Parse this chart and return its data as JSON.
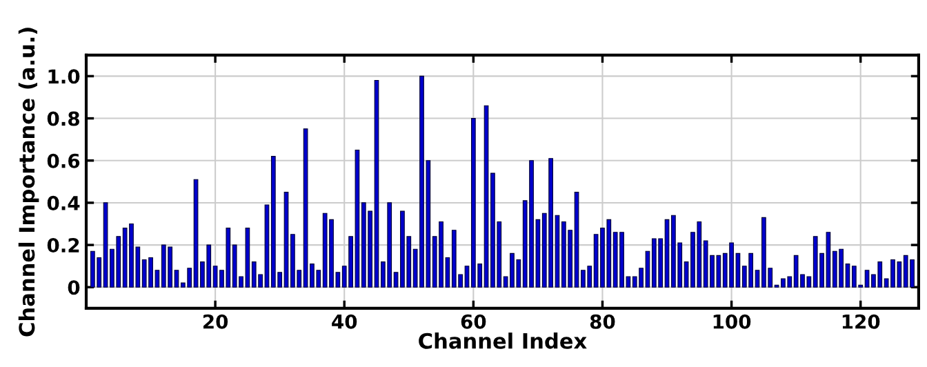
{
  "chart_data": {
    "type": "bar",
    "xlabel": "Channel Index",
    "ylabel": "Channel Importance (a.u.)",
    "x": [
      1,
      2,
      3,
      4,
      5,
      6,
      7,
      8,
      9,
      10,
      11,
      12,
      13,
      14,
      15,
      16,
      17,
      18,
      19,
      20,
      21,
      22,
      23,
      24,
      25,
      26,
      27,
      28,
      29,
      30,
      31,
      32,
      33,
      34,
      35,
      36,
      37,
      38,
      39,
      40,
      41,
      42,
      43,
      44,
      45,
      46,
      47,
      48,
      49,
      50,
      51,
      52,
      53,
      54,
      55,
      56,
      57,
      58,
      59,
      60,
      61,
      62,
      63,
      64,
      65,
      66,
      67,
      68,
      69,
      70,
      71,
      72,
      73,
      74,
      75,
      76,
      77,
      78,
      79,
      80,
      81,
      82,
      83,
      84,
      85,
      86,
      87,
      88,
      89,
      90,
      91,
      92,
      93,
      94,
      95,
      96,
      97,
      98,
      99,
      100,
      101,
      102,
      103,
      104,
      105,
      106,
      107,
      108,
      109,
      110,
      111,
      112,
      113,
      114,
      115,
      116,
      117,
      118,
      119,
      120,
      121,
      122,
      123,
      124,
      125,
      126,
      127,
      128
    ],
    "values": [
      0.17,
      0.14,
      0.4,
      0.18,
      0.24,
      0.28,
      0.3,
      0.19,
      0.13,
      0.14,
      0.08,
      0.2,
      0.19,
      0.08,
      0.02,
      0.09,
      0.51,
      0.12,
      0.2,
      0.1,
      0.08,
      0.28,
      0.2,
      0.05,
      0.28,
      0.12,
      0.06,
      0.39,
      0.62,
      0.07,
      0.45,
      0.25,
      0.08,
      0.75,
      0.11,
      0.08,
      0.35,
      0.32,
      0.07,
      0.1,
      0.24,
      0.65,
      0.4,
      0.36,
      0.98,
      0.12,
      0.4,
      0.07,
      0.36,
      0.24,
      0.18,
      1.0,
      0.6,
      0.24,
      0.31,
      0.14,
      0.27,
      0.06,
      0.1,
      0.8,
      0.11,
      0.86,
      0.54,
      0.31,
      0.05,
      0.16,
      0.13,
      0.41,
      0.6,
      0.32,
      0.35,
      0.61,
      0.34,
      0.31,
      0.27,
      0.45,
      0.08,
      0.1,
      0.25,
      0.28,
      0.32,
      0.26,
      0.26,
      0.05,
      0.05,
      0.09,
      0.17,
      0.23,
      0.23,
      0.32,
      0.34,
      0.21,
      0.12,
      0.26,
      0.31,
      0.22,
      0.15,
      0.15,
      0.16,
      0.21,
      0.16,
      0.1,
      0.16,
      0.08,
      0.33,
      0.09,
      0.01,
      0.04,
      0.05,
      0.15,
      0.06,
      0.05,
      0.24,
      0.16,
      0.26,
      0.17,
      0.18,
      0.11,
      0.1,
      0.01,
      0.08,
      0.06,
      0.12,
      0.04,
      0.13,
      0.12,
      0.15,
      0.13
    ],
    "color": "#0000cc",
    "xlim": [
      0,
      129
    ],
    "xticks": [
      20,
      40,
      60,
      80,
      100,
      120
    ],
    "ylim": [
      -0.1,
      1.1
    ],
    "yticks": [
      0,
      {
        "value": 0.2,
        "label": "0.2"
      },
      {
        "value": 0.4,
        "label": "0.4"
      },
      {
        "value": 0.6,
        "label": "0.6"
      },
      {
        "value": 0.8,
        "label": "0.8"
      },
      {
        "value": 1.0,
        "label": "1.0"
      }
    ],
    "grid": true
  }
}
